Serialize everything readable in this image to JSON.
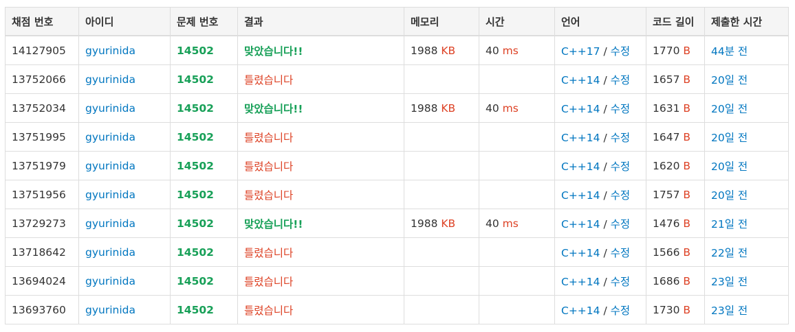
{
  "headers": [
    "채점 번호",
    "아이디",
    "문제 번호",
    "결과",
    "메모리",
    "시간",
    "언어",
    "코드 길이",
    "제출한 시간"
  ],
  "units": {
    "memory": "KB",
    "time": "ms",
    "length": "B"
  },
  "edit_label": "수정",
  "lang_separator": "/",
  "colors": {
    "accepted": "#18a058",
    "wrong": "#dd4124",
    "link": "#0076c0",
    "header_bg": "#f5f5f5",
    "border": "#dddddd"
  },
  "rows": [
    {
      "id": "14127905",
      "user": "gyurinida",
      "problem": "14502",
      "result": "맞았습니다!!",
      "status": "ac",
      "memory": "1988",
      "time": "40",
      "lang": "C++17",
      "length": "1770",
      "submitted": "44분 전"
    },
    {
      "id": "13752066",
      "user": "gyurinida",
      "problem": "14502",
      "result": "틀렸습니다",
      "status": "wa",
      "memory": "",
      "time": "",
      "lang": "C++14",
      "length": "1657",
      "submitted": "20일 전"
    },
    {
      "id": "13752034",
      "user": "gyurinida",
      "problem": "14502",
      "result": "맞았습니다!!",
      "status": "ac",
      "memory": "1988",
      "time": "40",
      "lang": "C++14",
      "length": "1631",
      "submitted": "20일 전"
    },
    {
      "id": "13751995",
      "user": "gyurinida",
      "problem": "14502",
      "result": "틀렸습니다",
      "status": "wa",
      "memory": "",
      "time": "",
      "lang": "C++14",
      "length": "1647",
      "submitted": "20일 전"
    },
    {
      "id": "13751979",
      "user": "gyurinida",
      "problem": "14502",
      "result": "틀렸습니다",
      "status": "wa",
      "memory": "",
      "time": "",
      "lang": "C++14",
      "length": "1620",
      "submitted": "20일 전"
    },
    {
      "id": "13751956",
      "user": "gyurinida",
      "problem": "14502",
      "result": "틀렸습니다",
      "status": "wa",
      "memory": "",
      "time": "",
      "lang": "C++14",
      "length": "1757",
      "submitted": "20일 전"
    },
    {
      "id": "13729273",
      "user": "gyurinida",
      "problem": "14502",
      "result": "맞았습니다!!",
      "status": "ac",
      "memory": "1988",
      "time": "40",
      "lang": "C++14",
      "length": "1476",
      "submitted": "21일 전"
    },
    {
      "id": "13718642",
      "user": "gyurinida",
      "problem": "14502",
      "result": "틀렸습니다",
      "status": "wa",
      "memory": "",
      "time": "",
      "lang": "C++14",
      "length": "1566",
      "submitted": "22일 전"
    },
    {
      "id": "13694024",
      "user": "gyurinida",
      "problem": "14502",
      "result": "틀렸습니다",
      "status": "wa",
      "memory": "",
      "time": "",
      "lang": "C++14",
      "length": "1686",
      "submitted": "23일 전"
    },
    {
      "id": "13693760",
      "user": "gyurinida",
      "problem": "14502",
      "result": "틀렸습니다",
      "status": "wa",
      "memory": "",
      "time": "",
      "lang": "C++14",
      "length": "1730",
      "submitted": "23일 전"
    }
  ]
}
